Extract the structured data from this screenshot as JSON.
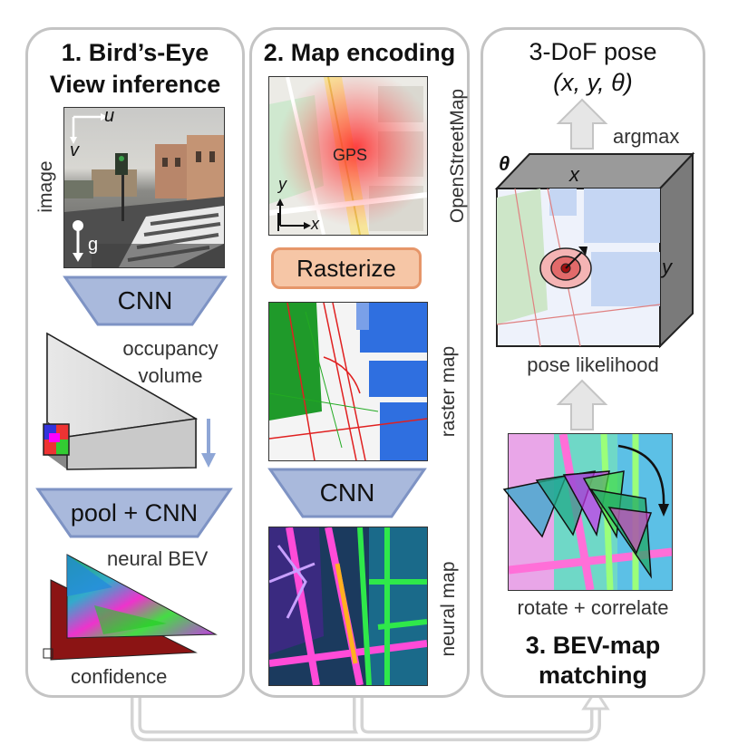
{
  "panel1": {
    "title_line1": "1. Bird’s-Eye",
    "title_line2": "View inference",
    "image_label": "image",
    "axis_u": "u",
    "axis_v": "v",
    "axis_g": "g",
    "cnn_label": "CNN",
    "occupancy_line1": "occupancy",
    "occupancy_line2": "volume",
    "pool_label": "pool + CNN",
    "neural_bev_label": "neural BEV",
    "confidence_label": "confidence"
  },
  "panel2": {
    "title": "2. Map encoding",
    "osm_label": "OpenStreetMap",
    "gps_label": "GPS",
    "axis_x": "x",
    "axis_y": "y",
    "rasterize_label": "Rasterize",
    "raster_label": "raster map",
    "cnn_label": "CNN",
    "neural_map_label": "neural map"
  },
  "panel3": {
    "pose_title": "3-DoF pose",
    "pose_vars": "(x, y, θ)",
    "argmax_label": "argmax",
    "theta_label": "θ",
    "x_label": "x",
    "y_label": "y",
    "likelihood_label": "pose likelihood",
    "rotate_label": "rotate + correlate",
    "title_line1": "3. BEV-map",
    "title_line2": "matching"
  },
  "colors": {
    "panel_border": "#c4c4c4",
    "cnn_fill": "#a9b9dc",
    "cnn_stroke": "#7e93c4",
    "rasterize_fill": "#f6c6a6",
    "rasterize_stroke": "#e6966a",
    "arrow_gray": "#e6e6e6"
  }
}
